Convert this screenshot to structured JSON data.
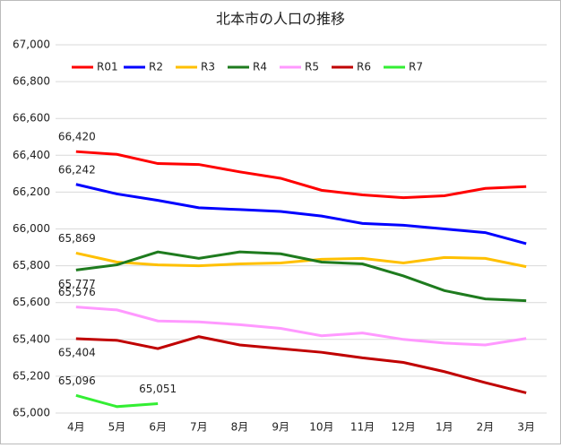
{
  "chart_data": {
    "type": "line",
    "title": "北本市の人口の推移",
    "categories": [
      "4月",
      "5月",
      "6月",
      "7月",
      "8月",
      "9月",
      "10月",
      "11月",
      "12月",
      "1月",
      "2月",
      "3月"
    ],
    "ylim": [
      65000,
      67000
    ],
    "yticks": [
      {
        "value": 65000,
        "label": "65,000"
      },
      {
        "value": 65200,
        "label": "65,200"
      },
      {
        "value": 65400,
        "label": "65,400"
      },
      {
        "value": 65600,
        "label": "65,600"
      },
      {
        "value": 65800,
        "label": "65,800"
      },
      {
        "value": 66000,
        "label": "66,000"
      },
      {
        "value": 66200,
        "label": "66,200"
      },
      {
        "value": 66400,
        "label": "66,400"
      },
      {
        "value": 66600,
        "label": "66,600"
      },
      {
        "value": 66800,
        "label": "66,800"
      },
      {
        "value": 67000,
        "label": "67,000"
      }
    ],
    "grid": true,
    "legend": "top",
    "series": [
      {
        "name": "R01",
        "color": "#ff0000",
        "values": [
          66420,
          66405,
          66355,
          66350,
          66310,
          66275,
          66210,
          66185,
          66170,
          66180,
          66220,
          66230
        ],
        "value_labels": [
          "66,420",
          null,
          null,
          null,
          null,
          null,
          null,
          null,
          null,
          null,
          null,
          null
        ]
      },
      {
        "name": "R2",
        "color": "#0000ff",
        "values": [
          66242,
          66190,
          66155,
          66115,
          66105,
          66095,
          66070,
          66030,
          66020,
          66000,
          65980,
          65920
        ],
        "value_labels": [
          "66,242",
          null,
          null,
          null,
          null,
          null,
          null,
          null,
          null,
          null,
          null,
          null
        ]
      },
      {
        "name": "R3",
        "color": "#ffc000",
        "values": [
          65869,
          65820,
          65805,
          65800,
          65810,
          65815,
          65835,
          65840,
          65815,
          65845,
          65840,
          65795
        ],
        "value_labels": [
          "65,869",
          null,
          null,
          null,
          null,
          null,
          null,
          null,
          null,
          null,
          null,
          null
        ]
      },
      {
        "name": "R4",
        "color": "#1e7b1e",
        "values": [
          65777,
          65805,
          65875,
          65840,
          65875,
          65865,
          65820,
          65810,
          65745,
          65665,
          65620,
          65610
        ],
        "value_labels": [
          "65,777",
          null,
          null,
          null,
          null,
          null,
          null,
          null,
          null,
          null,
          null,
          null
        ]
      },
      {
        "name": "R5",
        "color": "#ff99ff",
        "values": [
          65576,
          65560,
          65500,
          65495,
          65480,
          65460,
          65420,
          65435,
          65400,
          65380,
          65370,
          65405
        ],
        "value_labels": [
          "65,576",
          null,
          null,
          null,
          null,
          null,
          null,
          null,
          null,
          null,
          null,
          null
        ]
      },
      {
        "name": "R6",
        "color": "#c00000",
        "values": [
          65404,
          65395,
          65350,
          65415,
          65370,
          65350,
          65330,
          65300,
          65275,
          65225,
          65165,
          65110
        ],
        "value_labels": [
          "65,404",
          null,
          null,
          null,
          null,
          null,
          null,
          null,
          null,
          null,
          null,
          null
        ]
      },
      {
        "name": "R7",
        "color": "#33ee33",
        "values": [
          65096,
          65035,
          65051,
          null,
          null,
          null,
          null,
          null,
          null,
          null,
          null,
          null
        ],
        "value_labels": [
          "65,096",
          null,
          "65,051",
          null,
          null,
          null,
          null,
          null,
          null,
          null,
          null,
          null
        ]
      }
    ]
  }
}
